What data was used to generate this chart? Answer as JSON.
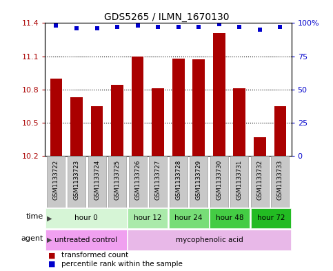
{
  "title": "GDS5265 / ILMN_1670130",
  "samples": [
    "GSM1133722",
    "GSM1133723",
    "GSM1133724",
    "GSM1133725",
    "GSM1133726",
    "GSM1133727",
    "GSM1133728",
    "GSM1133729",
    "GSM1133730",
    "GSM1133731",
    "GSM1133732",
    "GSM1133733"
  ],
  "bar_values": [
    10.9,
    10.73,
    10.65,
    10.84,
    11.1,
    10.81,
    11.08,
    11.07,
    11.31,
    10.81,
    10.37,
    10.65
  ],
  "percentile_values": [
    98,
    96,
    96,
    97,
    98,
    97,
    97,
    97,
    99,
    97,
    95,
    97
  ],
  "bar_color": "#AA0000",
  "percentile_color": "#0000CC",
  "ylim": [
    10.2,
    11.4
  ],
  "yticks": [
    10.2,
    10.5,
    10.8,
    11.1,
    11.4
  ],
  "ytick_labels": [
    "10.2",
    "10.5",
    "10.8",
    "11.1",
    "11.4"
  ],
  "right_yticks": [
    0,
    25,
    50,
    75,
    100
  ],
  "right_ytick_labels": [
    "0",
    "25",
    "50",
    "75",
    "100%"
  ],
  "dotted_lines": [
    10.5,
    10.8,
    11.1
  ],
  "time_groups": [
    {
      "label": "hour 0",
      "start": 0,
      "end": 4,
      "color": "#d6f5d6"
    },
    {
      "label": "hour 12",
      "start": 4,
      "end": 6,
      "color": "#aaeaaa"
    },
    {
      "label": "hour 24",
      "start": 6,
      "end": 8,
      "color": "#77dd77"
    },
    {
      "label": "hour 48",
      "start": 8,
      "end": 10,
      "color": "#44cc44"
    },
    {
      "label": "hour 72",
      "start": 10,
      "end": 12,
      "color": "#22bb22"
    }
  ],
  "agent_groups": [
    {
      "label": "untreated control",
      "start": 0,
      "end": 4,
      "color": "#f0a0f0"
    },
    {
      "label": "mycophenolic acid",
      "start": 4,
      "end": 12,
      "color": "#e8b8e8"
    }
  ],
  "legend_items": [
    {
      "color": "#AA0000",
      "label": "transformed count"
    },
    {
      "color": "#0000CC",
      "label": "percentile rank within the sample"
    }
  ],
  "bar_bottom": 10.2,
  "bar_color_rgb": "#AA0000",
  "sample_box_color": "#c8c8c8",
  "sample_box_edge": "#888888"
}
